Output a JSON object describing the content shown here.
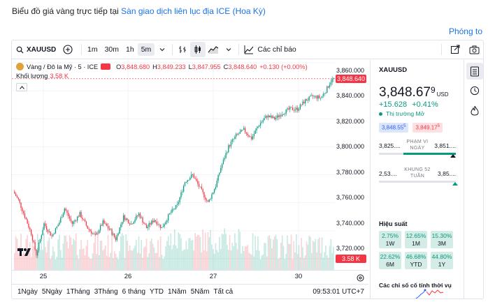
{
  "page": {
    "title_prefix": "Biểu đồ giá vàng trực tiếp tại",
    "title_link": "Sàn giao dịch liên lục địa ICE (Hoa Kỳ)",
    "zoom_link": "Phóng to"
  },
  "toolbar": {
    "symbol": "XAUUSD",
    "intervals": [
      "1m",
      "30m",
      "1h",
      "5m"
    ],
    "active_interval": "5m",
    "indicators_label": "Các chỉ báo"
  },
  "legend": {
    "title": "Vàng / Đô la Mỹ · 5 · ICE",
    "o_label": "O",
    "o_val": "3,848.680",
    "h_label": "H",
    "h_val": "3,849.233",
    "l_label": "L",
    "l_val": "3,847.955",
    "c_label": "C",
    "c_val": "3,848.640",
    "chg": "+0.130 (+0.00%)",
    "volume_label": "Khối lượng",
    "volume_val": "3.58 K"
  },
  "price_axis": {
    "labels": [
      "3,860.000",
      "3,840.000",
      "3,820.000",
      "3,800.000",
      "3,780.000",
      "3,760.000",
      "3,740.000",
      "3,720.000"
    ],
    "current_tag": "3,848.640",
    "volume_tag": "3.58 K"
  },
  "time_axis": {
    "labels": [
      "25",
      "26",
      "27",
      "30"
    ]
  },
  "ranges": {
    "items": [
      "1Ngày",
      "5Ngày",
      "1Tháng",
      "3Tháng",
      "6 tháng",
      "YTD",
      "1Năm",
      "5Năm",
      "Tất cả"
    ],
    "clock": "09:53:01 UTC+7"
  },
  "side": {
    "symbol": "XAUUSD",
    "price_main": "3,848.67",
    "price_sup": "9",
    "currency": "USD",
    "change": "+15.628",
    "change_pct": "+0.41%",
    "status": "Thị trường Mở",
    "bid": "3,848.55",
    "bid_sup": "5",
    "ask": "3,849.17",
    "ask_sup": "5",
    "day_low": "3,825....",
    "day_high": "3,851....",
    "day_caption": "PHẠM VI NGÀY",
    "day_fill": 0.68,
    "day_marker": 0.96,
    "year_low": "2,53....",
    "year_high": "3,85....",
    "year_caption": "KHUNG 52 TUẦN",
    "year_marker": 0.99,
    "perf_title": "Hiệu suất",
    "perf": [
      {
        "value": "2.75%",
        "period": "1W"
      },
      {
        "value": "12.65%",
        "period": "1M"
      },
      {
        "value": "15.30%",
        "period": "3M"
      },
      {
        "value": "22.62%",
        "period": "6M"
      },
      {
        "value": "46.68%",
        "period": "YTD"
      },
      {
        "value": "44.80%",
        "period": "1Y"
      }
    ],
    "tech_title": "Các chỉ số cố tính thời vụ"
  },
  "colors": {
    "up": "#089981",
    "down": "#f23645",
    "accent": "#2962ff",
    "link": "#1a73e8"
  },
  "chart_data": {
    "type": "candlestick",
    "symbol": "XAUUSD",
    "interval": "5",
    "x_ticks": [
      "25",
      "26",
      "27",
      "30"
    ],
    "ylim": [
      3712,
      3862
    ],
    "anchors": [
      [
        0,
        3768
      ],
      [
        4,
        3762
      ],
      [
        10,
        3748
      ],
      [
        14,
        3738
      ],
      [
        18,
        3723
      ],
      [
        24,
        3745
      ],
      [
        30,
        3736
      ],
      [
        36,
        3746
      ],
      [
        40,
        3756
      ],
      [
        46,
        3745
      ],
      [
        52,
        3752
      ],
      [
        58,
        3742
      ],
      [
        64,
        3736
      ],
      [
        70,
        3746
      ],
      [
        76,
        3740
      ],
      [
        80,
        3734
      ],
      [
        86,
        3750
      ],
      [
        92,
        3745
      ],
      [
        98,
        3752
      ],
      [
        104,
        3742
      ],
      [
        110,
        3748
      ],
      [
        116,
        3742
      ],
      [
        122,
        3752
      ],
      [
        128,
        3758
      ],
      [
        134,
        3775
      ],
      [
        140,
        3780
      ],
      [
        146,
        3770
      ],
      [
        152,
        3760
      ],
      [
        158,
        3772
      ],
      [
        162,
        3785
      ],
      [
        168,
        3800
      ],
      [
        174,
        3808
      ],
      [
        180,
        3812
      ],
      [
        186,
        3806
      ],
      [
        192,
        3816
      ],
      [
        198,
        3822
      ],
      [
        204,
        3820
      ],
      [
        210,
        3824
      ],
      [
        216,
        3827
      ],
      [
        222,
        3827
      ],
      [
        228,
        3833
      ],
      [
        234,
        3836
      ],
      [
        240,
        3835
      ],
      [
        244,
        3840
      ],
      [
        248,
        3847
      ],
      [
        250,
        3848.64
      ]
    ],
    "volume_tag": "3.58 K"
  }
}
